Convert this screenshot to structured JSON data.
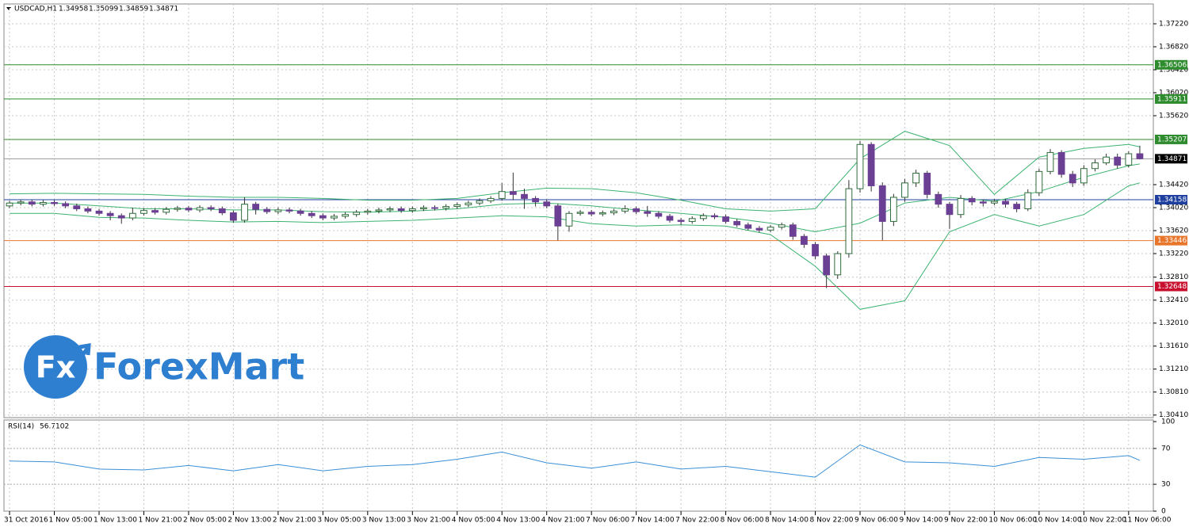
{
  "chart_data": [
    {
      "type": "candlestick",
      "title": "USDCAD,H1",
      "categories": [
        "31 Oct 2016",
        null,
        null,
        null,
        "1 Nov 05:00",
        null,
        null,
        null,
        "1 Nov 13:00",
        null,
        null,
        null,
        "1 Nov 21:00",
        null,
        null,
        null,
        "2 Nov 05:00",
        null,
        null,
        null,
        "2 Nov 13:00",
        null,
        null,
        null,
        "2 Nov 21:00",
        null,
        null,
        null,
        "3 Nov 05:00",
        null,
        null,
        null,
        "3 Nov 13:00",
        null,
        null,
        null,
        "3 Nov 21:00",
        null,
        null,
        null,
        "4 Nov 05:00",
        null,
        null,
        null,
        "4 Nov 13:00",
        null,
        null,
        null,
        "4 Nov 21:00",
        null,
        null,
        null,
        "7 Nov 06:00",
        null,
        null,
        null,
        "7 Nov 14:00",
        null,
        null,
        null,
        "7 Nov 22:00",
        null,
        null,
        null,
        "8 Nov 06:00",
        null,
        null,
        null,
        "8 Nov 14:00",
        null,
        null,
        null,
        "8 Nov 22:00",
        null,
        null,
        null,
        "9 Nov 06:00",
        null,
        null,
        null,
        "9 Nov 14:00",
        null,
        null,
        null,
        "9 Nov 22:00",
        null,
        null,
        null,
        "10 Nov 06:00",
        null,
        null,
        null,
        "10 Nov 14:00",
        null,
        null,
        null,
        "10 Nov 22:00",
        null,
        null,
        null,
        "11 Nov 06:00",
        null
      ],
      "open": [
        1.3405,
        1.341,
        1.3412,
        1.3408,
        1.3411,
        1.3409,
        1.3405,
        1.34,
        1.3396,
        1.3392,
        1.3388,
        1.3384,
        1.3392,
        1.3397,
        1.3394,
        1.3399,
        1.3401,
        1.3398,
        1.3402,
        1.34,
        1.3393,
        1.338,
        1.3408,
        1.3399,
        1.3395,
        1.3398,
        1.3396,
        1.3392,
        1.3388,
        1.3384,
        1.3387,
        1.339,
        1.3394,
        1.3396,
        1.3398,
        1.34,
        1.3397,
        1.34,
        1.3402,
        1.3401,
        1.3404,
        1.3407,
        1.341,
        1.3414,
        1.3418,
        1.343,
        1.3425,
        1.3418,
        1.3412,
        1.3405,
        1.337,
        1.3392,
        1.3394,
        1.3391,
        1.3393,
        1.3396,
        1.34,
        1.3395,
        1.3392,
        1.3387,
        1.338,
        1.3378,
        1.3383,
        1.3388,
        1.3386,
        1.3378,
        1.3372,
        1.3366,
        1.3363,
        1.3368,
        1.3372,
        1.3352,
        1.3338,
        1.3318,
        1.3285,
        1.3322,
        1.3435,
        1.3512,
        1.344,
        1.3378,
        1.342,
        1.3445,
        1.3462,
        1.3425,
        1.3408,
        1.339,
        1.3418,
        1.3412,
        1.341,
        1.3413,
        1.3408,
        1.34,
        1.3428,
        1.3465,
        1.3498,
        1.346,
        1.3445,
        1.347,
        1.348,
        1.349,
        1.3476,
        1.34958
      ],
      "high": [
        1.3414,
        1.3416,
        1.3416,
        1.3415,
        1.3415,
        1.3413,
        1.3409,
        1.3404,
        1.34,
        1.3396,
        1.3392,
        1.3402,
        1.3401,
        1.3401,
        1.3403,
        1.3405,
        1.3405,
        1.3406,
        1.3406,
        1.3404,
        1.3397,
        1.342,
        1.3412,
        1.3403,
        1.3402,
        1.3402,
        1.34,
        1.3396,
        1.3392,
        1.3391,
        1.3394,
        1.3398,
        1.34,
        1.3402,
        1.3404,
        1.3404,
        1.3404,
        1.3406,
        1.3406,
        1.3408,
        1.3411,
        1.3414,
        1.3418,
        1.3422,
        1.3445,
        1.3463,
        1.3435,
        1.3422,
        1.3416,
        1.3409,
        1.3396,
        1.3398,
        1.3398,
        1.3397,
        1.34,
        1.3406,
        1.3404,
        1.3405,
        1.3396,
        1.3391,
        1.3384,
        1.3387,
        1.3392,
        1.3392,
        1.339,
        1.3382,
        1.3376,
        1.337,
        1.3372,
        1.3376,
        1.3376,
        1.3356,
        1.3342,
        1.3322,
        1.3326,
        1.345,
        1.3518,
        1.3516,
        1.3446,
        1.3426,
        1.3452,
        1.3468,
        1.3466,
        1.343,
        1.3412,
        1.3424,
        1.3422,
        1.3416,
        1.3417,
        1.3417,
        1.3412,
        1.3434,
        1.347,
        1.3504,
        1.3502,
        1.3466,
        1.3476,
        1.3486,
        1.3496,
        1.3496,
        1.35,
        1.35099
      ],
      "low": [
        1.3401,
        1.3406,
        1.3404,
        1.3404,
        1.3405,
        1.3401,
        1.3396,
        1.3392,
        1.3388,
        1.338,
        1.3374,
        1.338,
        1.3388,
        1.339,
        1.339,
        1.3395,
        1.3394,
        1.3394,
        1.3396,
        1.3389,
        1.3376,
        1.3376,
        1.339,
        1.3391,
        1.3391,
        1.3392,
        1.3388,
        1.3384,
        1.338,
        1.338,
        1.3383,
        1.3386,
        1.339,
        1.3392,
        1.3394,
        1.3393,
        1.3393,
        1.3396,
        1.3397,
        1.3397,
        1.34,
        1.3403,
        1.3406,
        1.341,
        1.3414,
        1.3415,
        1.34,
        1.3404,
        1.3401,
        1.3345,
        1.336,
        1.3388,
        1.3387,
        1.3387,
        1.3389,
        1.3392,
        1.3391,
        1.3386,
        1.3383,
        1.3376,
        1.3372,
        1.3374,
        1.3379,
        1.3382,
        1.3374,
        1.3368,
        1.3362,
        1.3359,
        1.3359,
        1.3364,
        1.3346,
        1.3332,
        1.3312,
        1.3262,
        1.3278,
        1.3315,
        1.3428,
        1.343,
        1.3345,
        1.337,
        1.3412,
        1.3438,
        1.3418,
        1.3402,
        1.3365,
        1.3384,
        1.3406,
        1.3404,
        1.3406,
        1.3402,
        1.3394,
        1.3396,
        1.3422,
        1.346,
        1.3454,
        1.3438,
        1.344,
        1.3465,
        1.3476,
        1.347,
        1.3472,
        1.34859
      ],
      "close": [
        1.341,
        1.3412,
        1.3408,
        1.3411,
        1.3409,
        1.3405,
        1.34,
        1.3396,
        1.3392,
        1.3388,
        1.3384,
        1.3392,
        1.3397,
        1.3394,
        1.3399,
        1.3401,
        1.3398,
        1.3402,
        1.34,
        1.3393,
        1.338,
        1.3408,
        1.3399,
        1.3395,
        1.3398,
        1.3396,
        1.3392,
        1.3388,
        1.3384,
        1.3387,
        1.339,
        1.3394,
        1.3396,
        1.3398,
        1.34,
        1.3397,
        1.34,
        1.3402,
        1.3401,
        1.3404,
        1.3407,
        1.341,
        1.3414,
        1.3418,
        1.343,
        1.3425,
        1.3418,
        1.3412,
        1.3405,
        1.337,
        1.3392,
        1.3394,
        1.3391,
        1.3393,
        1.3396,
        1.34,
        1.3395,
        1.3392,
        1.3387,
        1.338,
        1.3378,
        1.3383,
        1.3388,
        1.3386,
        1.3378,
        1.3372,
        1.3366,
        1.3363,
        1.3368,
        1.3372,
        1.3352,
        1.3338,
        1.3318,
        1.3285,
        1.3322,
        1.3435,
        1.3512,
        1.344,
        1.3378,
        1.342,
        1.3445,
        1.3462,
        1.3425,
        1.3408,
        1.339,
        1.3418,
        1.3412,
        1.341,
        1.3413,
        1.3408,
        1.34,
        1.3428,
        1.3465,
        1.3498,
        1.346,
        1.3445,
        1.347,
        1.348,
        1.349,
        1.3476,
        1.34958,
        1.34871
      ],
      "up_color": "#ffffff",
      "down_color": "#6b3f93",
      "edge_color": "#2f6b3a",
      "bands": {
        "color": "#3cb371",
        "x": [
          0,
          4,
          8,
          12,
          16,
          20,
          24,
          28,
          32,
          36,
          40,
          44,
          48,
          52,
          56,
          60,
          64,
          68,
          72,
          76,
          80,
          84,
          88,
          92,
          96,
          100,
          101
        ],
        "upper": [
          1.3426,
          1.3427,
          1.3426,
          1.3425,
          1.3422,
          1.342,
          1.342,
          1.3418,
          1.3415,
          1.3415,
          1.3418,
          1.3428,
          1.3436,
          1.3435,
          1.3428,
          1.3415,
          1.34,
          1.3396,
          1.34,
          1.3487,
          1.3535,
          1.351,
          1.3425,
          1.349,
          1.3505,
          1.3512,
          1.3508
        ],
        "middle": [
          1.341,
          1.341,
          1.3405,
          1.34,
          1.34,
          1.3398,
          1.3398,
          1.3395,
          1.3394,
          1.3396,
          1.34,
          1.3408,
          1.341,
          1.3405,
          1.3398,
          1.3392,
          1.3385,
          1.3375,
          1.336,
          1.3375,
          1.341,
          1.342,
          1.3413,
          1.343,
          1.3455,
          1.3475,
          1.3478
        ],
        "lower": [
          1.3392,
          1.3392,
          1.3385,
          1.3384,
          1.338,
          1.3377,
          1.3378,
          1.3376,
          1.3378,
          1.338,
          1.3384,
          1.3388,
          1.3386,
          1.3374,
          1.337,
          1.3372,
          1.337,
          1.3355,
          1.33,
          1.3225,
          1.324,
          1.336,
          1.339,
          1.337,
          1.339,
          1.344,
          1.3445
        ]
      },
      "levels": [
        {
          "value": 1.36506,
          "color": "#2e8b2e"
        },
        {
          "value": 1.35911,
          "color": "#2e8b2e"
        },
        {
          "value": 1.35207,
          "color": "#2e8b2e"
        },
        {
          "value": 1.34871,
          "color": "#000000"
        },
        {
          "value": 1.34158,
          "color": "#1f3f9f"
        },
        {
          "value": 1.33446,
          "color": "#e8752a"
        },
        {
          "value": 1.32648,
          "color": "#c8102e"
        }
      ],
      "ylim": [
        1.30365,
        1.37565
      ],
      "yticks": [
        {
          "value": 1.3722,
          "label": "1.37220"
        },
        {
          "value": 1.3682,
          "label": "1.36820"
        },
        {
          "value": 1.3642,
          "label": "1.36420"
        },
        {
          "value": 1.3602,
          "label": "1.36020"
        },
        {
          "value": 1.3562,
          "label": "1.35620"
        },
        {
          "value": 1.3442,
          "label": "1.34420"
        },
        {
          "value": 1.3402,
          "label": "1.34020"
        },
        {
          "value": 1.3362,
          "label": "1.33620"
        },
        {
          "value": 1.3322,
          "label": "1.33220"
        },
        {
          "value": 1.3281,
          "label": "1.32810"
        },
        {
          "value": 1.3241,
          "label": "1.32410"
        },
        {
          "value": 1.3201,
          "label": "1.32010"
        },
        {
          "value": 1.3161,
          "label": "1.31610"
        },
        {
          "value": 1.3121,
          "label": "1.31210"
        },
        {
          "value": 1.3081,
          "label": "1.30810"
        },
        {
          "value": 1.3041,
          "label": "1.30410"
        }
      ],
      "grid": true
    },
    {
      "type": "line",
      "title": "RSI(14)",
      "color": "#3a8fd6",
      "x": [
        0,
        4,
        8,
        12,
        16,
        20,
        24,
        28,
        32,
        36,
        40,
        44,
        48,
        52,
        56,
        60,
        64,
        68,
        72,
        76,
        80,
        84,
        88,
        92,
        96,
        100,
        101
      ],
      "values": [
        56,
        55,
        47,
        46,
        51,
        45,
        52,
        45,
        50,
        52,
        58,
        66,
        54,
        48,
        55,
        47,
        50,
        44,
        38,
        74,
        55,
        54,
        50,
        60,
        58,
        62,
        56.7102
      ],
      "ylim": [
        0,
        100
      ],
      "yticks": [
        100,
        70,
        30,
        0
      ],
      "grid_ticks": [
        70,
        30
      ]
    }
  ],
  "watermark": {
    "icon": "Fx",
    "text": "ForexMart"
  }
}
